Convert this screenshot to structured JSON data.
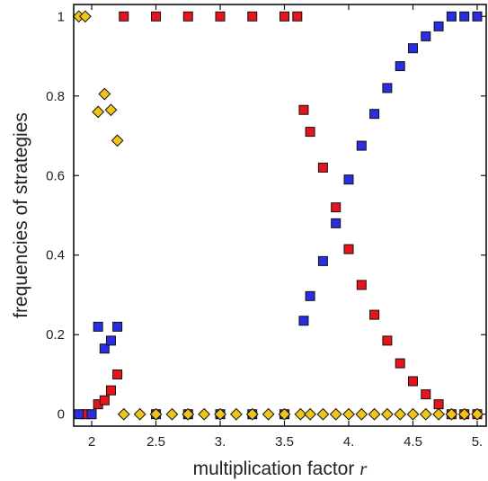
{
  "chart_data": {
    "type": "scatter",
    "xlabel": "multiplication factor",
    "xlabel_var": "r",
    "ylabel": "frequencies of strategies",
    "xlim": [
      1.86,
      5.07
    ],
    "ylim": [
      -0.03,
      1.03
    ],
    "x_ticks": [
      2,
      2.5,
      3,
      3.5,
      4,
      4.5,
      5
    ],
    "x_tick_labels": [
      "2",
      "2.5",
      "3.",
      "3.5",
      "4.",
      "4.5",
      "5."
    ],
    "y_ticks": [
      0,
      0.2,
      0.4,
      0.6,
      0.8,
      1
    ],
    "y_tick_labels": [
      "0",
      "0.2",
      "0.4",
      "0.6",
      "0.8",
      "1"
    ],
    "grid": false,
    "series": [
      {
        "color": "#e8141b",
        "marker": "square",
        "points": [
          [
            1.95,
            0
          ],
          [
            2.05,
            0.025
          ],
          [
            2.1,
            0.035
          ],
          [
            2.15,
            0.06
          ],
          [
            2.2,
            0.1
          ],
          [
            2.25,
            1
          ],
          [
            2.5,
            1
          ],
          [
            2.75,
            1
          ],
          [
            3.0,
            1
          ],
          [
            3.25,
            1
          ],
          [
            3.5,
            1
          ],
          [
            3.6,
            1
          ],
          [
            3.65,
            0.765
          ],
          [
            3.7,
            0.71
          ],
          [
            3.8,
            0.62
          ],
          [
            3.9,
            0.52
          ],
          [
            4.0,
            0.415
          ],
          [
            4.1,
            0.325
          ],
          [
            4.2,
            0.25
          ],
          [
            4.3,
            0.185
          ],
          [
            4.4,
            0.128
          ],
          [
            4.5,
            0.083
          ],
          [
            4.6,
            0.05
          ],
          [
            4.7,
            0.025
          ],
          [
            4.8,
            0
          ],
          [
            4.9,
            0
          ],
          [
            5.0,
            0
          ]
        ]
      },
      {
        "color": "#2a2ee0",
        "marker": "square",
        "points": [
          [
            1.9,
            0
          ],
          [
            2.0,
            0
          ],
          [
            2.05,
            0.22
          ],
          [
            2.1,
            0.165
          ],
          [
            2.15,
            0.185
          ],
          [
            2.2,
            0.22
          ],
          [
            2.5,
            0
          ],
          [
            2.75,
            0
          ],
          [
            3.0,
            0
          ],
          [
            3.25,
            0
          ],
          [
            3.5,
            0
          ],
          [
            3.65,
            0.235
          ],
          [
            3.7,
            0.297
          ],
          [
            3.8,
            0.385
          ],
          [
            3.9,
            0.48
          ],
          [
            4.0,
            0.59
          ],
          [
            4.1,
            0.675
          ],
          [
            4.2,
            0.755
          ],
          [
            4.3,
            0.82
          ],
          [
            4.4,
            0.875
          ],
          [
            4.5,
            0.92
          ],
          [
            4.6,
            0.95
          ],
          [
            4.7,
            0.975
          ],
          [
            4.8,
            1
          ],
          [
            4.9,
            1
          ],
          [
            5.0,
            1
          ]
        ]
      },
      {
        "color": "#f2c318",
        "marker": "diamond",
        "points": [
          [
            1.9,
            1
          ],
          [
            1.95,
            1
          ],
          [
            2.05,
            0.76
          ],
          [
            2.1,
            0.805
          ],
          [
            2.15,
            0.765
          ],
          [
            2.2,
            0.688
          ],
          [
            2.25,
            0
          ],
          [
            2.375,
            0
          ],
          [
            2.5,
            0
          ],
          [
            2.625,
            0
          ],
          [
            2.75,
            0
          ],
          [
            2.875,
            0
          ],
          [
            3.0,
            0
          ],
          [
            3.125,
            0
          ],
          [
            3.25,
            0
          ],
          [
            3.375,
            0
          ],
          [
            3.5,
            0
          ],
          [
            3.625,
            0
          ],
          [
            3.7,
            0
          ],
          [
            3.8,
            0
          ],
          [
            3.9,
            0
          ],
          [
            4.0,
            0
          ],
          [
            4.1,
            0
          ],
          [
            4.2,
            0
          ],
          [
            4.3,
            0
          ],
          [
            4.4,
            0
          ],
          [
            4.5,
            0
          ],
          [
            4.6,
            0
          ],
          [
            4.7,
            0
          ],
          [
            4.8,
            0
          ],
          [
            4.9,
            0
          ],
          [
            5.0,
            0
          ]
        ]
      }
    ]
  }
}
